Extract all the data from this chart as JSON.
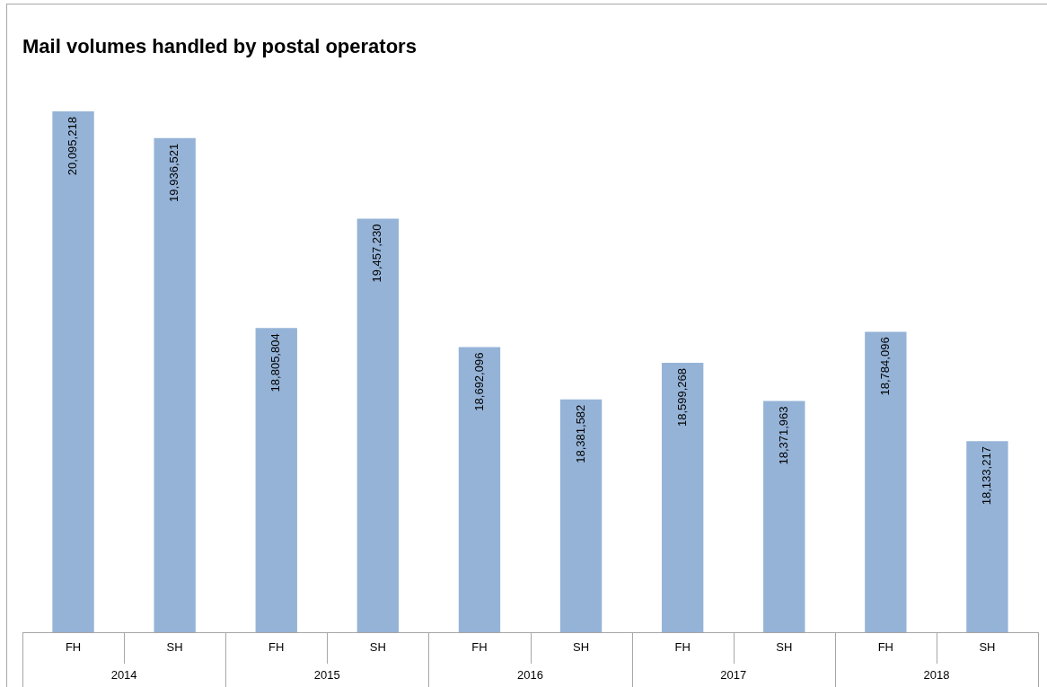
{
  "chart_data": {
    "type": "bar",
    "title": "Mail volumes handled by postal operators",
    "categories": [
      "FH",
      "SH",
      "FH",
      "SH",
      "FH",
      "SH",
      "FH",
      "SH",
      "FH",
      "SH"
    ],
    "values": [
      20095218,
      19936521,
      18805804,
      19457230,
      18692096,
      18381582,
      18599268,
      18371963,
      18784096,
      18133217
    ],
    "color": "#95b3d7",
    "value_labels": [
      "20,095,218",
      "19,936,521",
      "18,805,804",
      "19,457,230",
      "18,692,096",
      "18,381,582",
      "18,599,268",
      "18,371,963",
      "18,784,096",
      "18,133,217"
    ],
    "tick_labels": "x",
    "grid": false,
    "legend": false,
    "data_labels": true,
    "annotations": [
      "2014",
      "2015",
      "2016",
      "2017",
      "2018"
    ]
  }
}
